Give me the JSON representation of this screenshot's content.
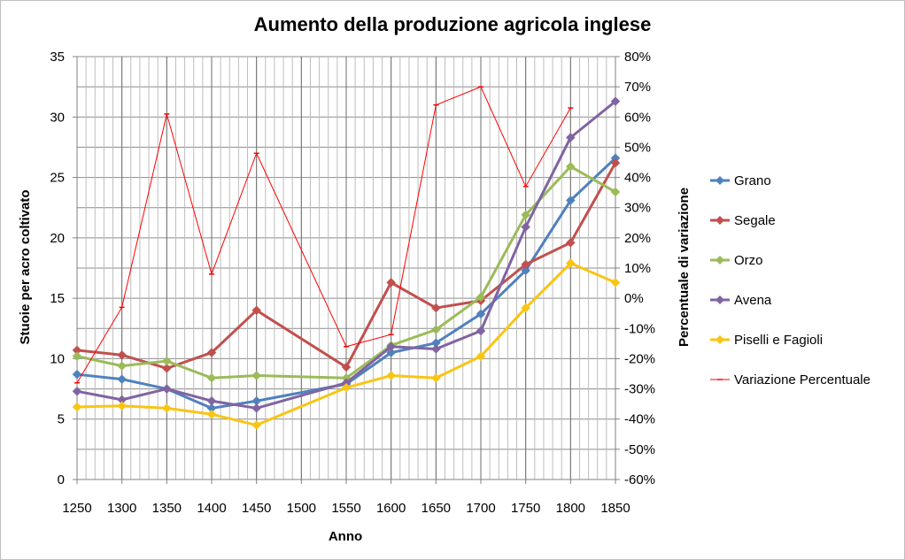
{
  "chart_data": {
    "type": "line",
    "title": "Aumento della produzione agricola inglese",
    "xlabel": "Anno",
    "ylabel": "Stuoie per acro coltivato",
    "y2label": "Percentuale di variazione",
    "x": [
      1250,
      1300,
      1350,
      1400,
      1450,
      1500,
      1550,
      1600,
      1650,
      1700,
      1750,
      1800,
      1850
    ],
    "ylim": [
      0,
      35
    ],
    "yticks": [
      0,
      5,
      10,
      15,
      20,
      25,
      30,
      35
    ],
    "y2lim": [
      -60,
      80
    ],
    "y2ticks": [
      "-60%",
      "-50%",
      "-40%",
      "-30%",
      "-20%",
      "-10%",
      "0%",
      "10%",
      "20%",
      "30%",
      "40%",
      "50%",
      "60%",
      "70%",
      "80%"
    ],
    "grid": true,
    "legend_position": "right",
    "series": [
      {
        "name": "Grano",
        "color": "#4f81bd",
        "marker": "diamond",
        "axis": "left",
        "points": [
          [
            1250,
            8.7
          ],
          [
            1300,
            8.3
          ],
          [
            1350,
            7.5
          ],
          [
            1400,
            5.9
          ],
          [
            1450,
            6.5
          ],
          [
            1550,
            7.9
          ],
          [
            1600,
            10.5
          ],
          [
            1650,
            11.3
          ],
          [
            1700,
            13.7
          ],
          [
            1750,
            17.3
          ],
          [
            1800,
            23.1
          ],
          [
            1850,
            26.6
          ]
        ]
      },
      {
        "name": "Segale",
        "color": "#c0504d",
        "marker": "diamond",
        "axis": "left",
        "points": [
          [
            1250,
            10.7
          ],
          [
            1300,
            10.3
          ],
          [
            1350,
            9.2
          ],
          [
            1400,
            10.5
          ],
          [
            1450,
            14.0
          ],
          [
            1550,
            9.3
          ],
          [
            1600,
            16.3
          ],
          [
            1650,
            14.2
          ],
          [
            1700,
            14.8
          ],
          [
            1750,
            17.8
          ],
          [
            1800,
            19.6
          ],
          [
            1850,
            26.2
          ]
        ]
      },
      {
        "name": "Orzo",
        "color": "#9bbb59",
        "marker": "diamond",
        "axis": "left",
        "points": [
          [
            1250,
            10.2
          ],
          [
            1300,
            9.4
          ],
          [
            1350,
            9.8
          ],
          [
            1400,
            8.4
          ],
          [
            1450,
            8.6
          ],
          [
            1550,
            8.4
          ],
          [
            1600,
            11.1
          ],
          [
            1650,
            12.4
          ],
          [
            1700,
            15.1
          ],
          [
            1750,
            21.9
          ],
          [
            1800,
            25.9
          ],
          [
            1850,
            23.8
          ]
        ]
      },
      {
        "name": "Avena",
        "color": "#8064a2",
        "marker": "diamond",
        "axis": "left",
        "points": [
          [
            1250,
            7.3
          ],
          [
            1300,
            6.6
          ],
          [
            1350,
            7.5
          ],
          [
            1400,
            6.5
          ],
          [
            1450,
            5.9
          ],
          [
            1550,
            8.0
          ],
          [
            1600,
            11.0
          ],
          [
            1650,
            10.8
          ],
          [
            1700,
            12.3
          ],
          [
            1750,
            20.9
          ],
          [
            1800,
            28.3
          ],
          [
            1850,
            31.3
          ]
        ]
      },
      {
        "name": "Piselli e Fagioli",
        "color": "#f9c513",
        "marker": "diamond",
        "axis": "left",
        "points": [
          [
            1250,
            6.0
          ],
          [
            1300,
            6.1
          ],
          [
            1350,
            5.9
          ],
          [
            1400,
            5.4
          ],
          [
            1450,
            4.5
          ],
          [
            1550,
            7.6
          ],
          [
            1600,
            8.6
          ],
          [
            1650,
            8.4
          ],
          [
            1700,
            10.2
          ],
          [
            1750,
            14.2
          ],
          [
            1800,
            17.9
          ],
          [
            1850,
            16.3
          ]
        ]
      },
      {
        "name": "Variazione Percentuale",
        "color": "#ff0000",
        "marker": "dash",
        "axis": "right",
        "points": [
          [
            1250,
            -28
          ],
          [
            1300,
            -3
          ],
          [
            1350,
            61
          ],
          [
            1400,
            8
          ],
          [
            1450,
            48
          ],
          [
            1550,
            -16
          ],
          [
            1600,
            -12
          ],
          [
            1650,
            64
          ],
          [
            1700,
            70
          ],
          [
            1750,
            37
          ],
          [
            1800,
            63
          ]
        ]
      }
    ]
  }
}
